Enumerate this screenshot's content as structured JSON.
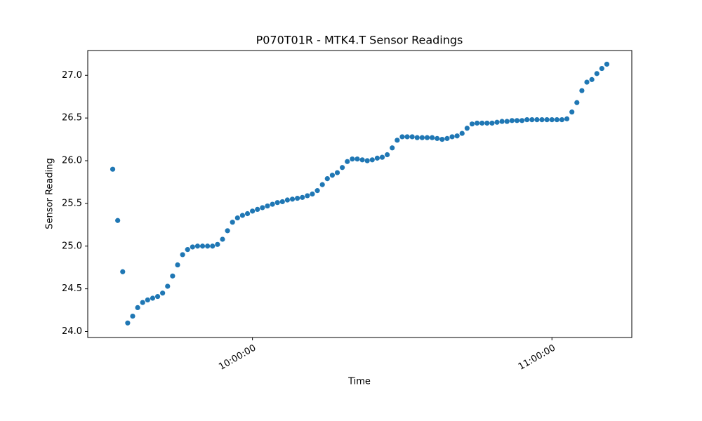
{
  "chart_data": {
    "type": "scatter",
    "title": "P070T01R - MTK4.T Sensor Readings",
    "x_label": "Time",
    "y_label": "Sensor Reading",
    "color": "#1f77b4",
    "x": [
      "09:32:00",
      "09:33:00",
      "09:34:00",
      "09:35:00",
      "09:36:00",
      "09:37:00",
      "09:38:00",
      "09:39:00",
      "09:40:00",
      "09:41:00",
      "09:42:00",
      "09:43:00",
      "09:44:00",
      "09:45:00",
      "09:46:00",
      "09:47:00",
      "09:48:00",
      "09:49:00",
      "09:50:00",
      "09:51:00",
      "09:52:00",
      "09:53:00",
      "09:54:00",
      "09:55:00",
      "09:56:00",
      "09:57:00",
      "09:58:00",
      "09:59:00",
      "10:00:00",
      "10:01:00",
      "10:02:00",
      "10:03:00",
      "10:04:00",
      "10:05:00",
      "10:06:00",
      "10:07:00",
      "10:08:00",
      "10:09:00",
      "10:10:00",
      "10:11:00",
      "10:12:00",
      "10:13:00",
      "10:14:00",
      "10:15:00",
      "10:16:00",
      "10:17:00",
      "10:18:00",
      "10:19:00",
      "10:20:00",
      "10:21:00",
      "10:22:00",
      "10:23:00",
      "10:24:00",
      "10:25:00",
      "10:26:00",
      "10:27:00",
      "10:28:00",
      "10:29:00",
      "10:30:00",
      "10:31:00",
      "10:32:00",
      "10:33:00",
      "10:34:00",
      "10:35:00",
      "10:36:00",
      "10:37:00",
      "10:38:00",
      "10:39:00",
      "10:40:00",
      "10:41:00",
      "10:42:00",
      "10:43:00",
      "10:44:00",
      "10:45:00",
      "10:46:00",
      "10:47:00",
      "10:48:00",
      "10:49:00",
      "10:50:00",
      "10:51:00",
      "10:52:00",
      "10:53:00",
      "10:54:00",
      "10:55:00",
      "10:56:00",
      "10:57:00",
      "10:58:00",
      "10:59:00",
      "11:00:00",
      "11:01:00",
      "11:02:00",
      "11:03:00",
      "11:04:00",
      "11:05:00",
      "11:06:00",
      "11:07:00",
      "11:08:00",
      "11:09:00",
      "11:10:00",
      "11:11:00"
    ],
    "values": [
      25.9,
      25.3,
      24.7,
      24.1,
      24.18,
      24.28,
      24.34,
      24.37,
      24.39,
      24.41,
      24.45,
      24.53,
      24.65,
      24.78,
      24.9,
      24.96,
      24.99,
      25.0,
      25.0,
      25.0,
      25.0,
      25.02,
      25.08,
      25.18,
      25.28,
      25.33,
      25.36,
      25.38,
      25.41,
      25.43,
      25.45,
      25.47,
      25.49,
      25.51,
      25.52,
      25.54,
      25.55,
      25.56,
      25.57,
      25.59,
      25.61,
      25.65,
      25.72,
      25.79,
      25.83,
      25.86,
      25.92,
      25.99,
      26.02,
      26.02,
      26.01,
      26.0,
      26.01,
      26.03,
      26.04,
      26.07,
      26.15,
      26.24,
      26.28,
      26.28,
      26.28,
      26.27,
      26.27,
      26.27,
      26.27,
      26.26,
      26.25,
      26.26,
      26.28,
      26.29,
      26.32,
      26.38,
      26.43,
      26.44,
      26.44,
      26.44,
      26.44,
      26.45,
      26.46,
      26.46,
      26.47,
      26.47,
      26.47,
      26.48,
      26.48,
      26.48,
      26.48,
      26.48,
      26.48,
      26.48,
      26.48,
      26.49,
      26.57,
      26.68,
      26.82,
      26.92,
      26.95,
      27.02,
      27.08,
      27.13
    ],
    "xlim": [
      "09:27:00",
      "11:16:00"
    ],
    "xticks": [
      "10:00:00",
      "11:00:00"
    ],
    "ylim": [
      23.93,
      27.29
    ],
    "yticks": [
      {
        "value": 24,
        "label": "24.0"
      },
      24.5,
      {
        "value": 25,
        "label": "25.0"
      },
      25.5,
      {
        "value": 26,
        "label": "26.0"
      },
      26.5,
      {
        "value": 27,
        "label": "27.0"
      }
    ]
  }
}
